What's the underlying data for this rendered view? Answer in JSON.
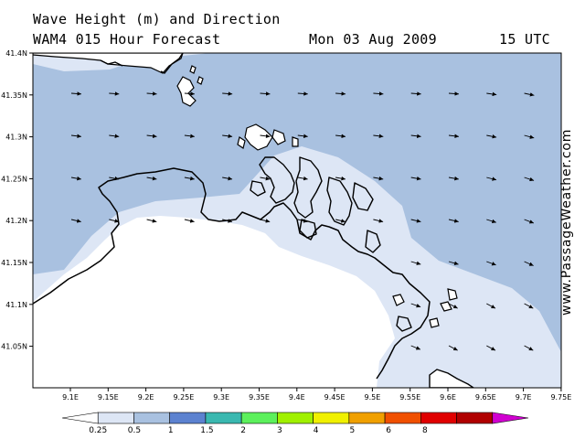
{
  "header": {
    "title": "Wave Height (m) and Direction",
    "model": "WAM4 015 Hour Forecast",
    "date": "Mon 03 Aug 2009",
    "time": "15 UTC"
  },
  "credit": "www.PassageWeather.com",
  "map": {
    "lat_labels": [
      "41.4N",
      "41.35N",
      "41.3N",
      "41.25N",
      "41.2N",
      "41.15N",
      "41.1N",
      "41.05N"
    ],
    "lon_labels": [
      "9.1E",
      "9.15E",
      "9.2E",
      "9.25E",
      "9.3E",
      "9.35E",
      "9.4E",
      "9.45E",
      "9.5E",
      "9.55E",
      "9.6E",
      "9.65E",
      "9.7E",
      "9.75E"
    ],
    "colors": {
      "sea_deep": "#a9c1e0",
      "sea_shallow": "#dde6f5",
      "land": "#ffffff",
      "coast": "#000000"
    }
  },
  "colorbar": {
    "labels": [
      "0.25",
      "0.5",
      "1",
      "1.5",
      "2",
      "3",
      "4",
      "5",
      "6",
      "8"
    ],
    "colors": [
      "#ffffff",
      "#dde6f5",
      "#a9c1e0",
      "#5c82d0",
      "#3ab8b0",
      "#5cf05c",
      "#a0f000",
      "#f0f000",
      "#f0a000",
      "#f05000",
      "#e00000",
      "#b00000",
      "#d000d0"
    ]
  }
}
